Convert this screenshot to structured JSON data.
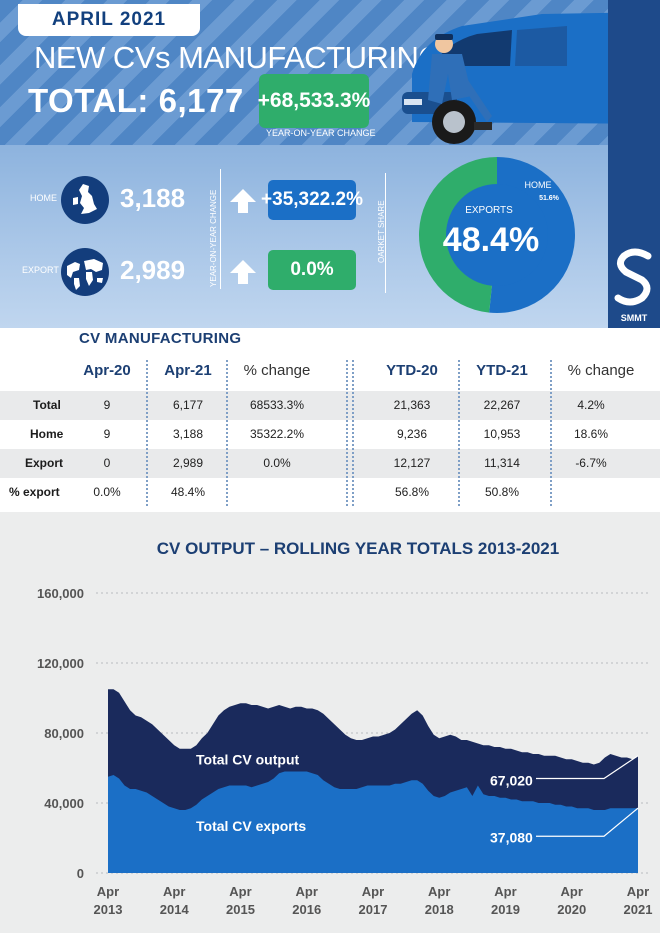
{
  "header": {
    "month": "APRIL 2021",
    "title": "NEW CVs MANUFACTURING",
    "total_label": "TOTAL: 6,177",
    "yoy_change": "+68,533.3%",
    "yoy_caption": "YEAR-ON-YEAR CHANGE"
  },
  "breakdown": {
    "home_label": "HOME",
    "home_value": "3,188",
    "home_change": "+35,322.2%",
    "export_label": "EXPORT",
    "export_value": "2,989",
    "export_change": "0.0%",
    "yoy_vertical_label": "YEAR-ON-YEAR CHANGE",
    "market_share_label": "OARKET SHARE",
    "donut_exports_label": "EXPORTS",
    "donut_exports_value": "48.4%",
    "donut_home_label": "HOME",
    "donut_home_value": "51.6%",
    "exports_share": 48.4,
    "home_share": 51.6,
    "colors": {
      "home": "#1b6fc6",
      "exports": "#2fad6b",
      "badge_blue": "#1b6fc6",
      "badge_green": "#2fad6b"
    }
  },
  "brand": {
    "name": "SMMT"
  },
  "table": {
    "title": "CV MANUFACTURING",
    "headers": [
      "Apr-20",
      "Apr-21",
      "% change",
      "YTD-20",
      "YTD-21",
      "% change"
    ],
    "rows": [
      {
        "label": "Total",
        "cells": [
          "9",
          "6,177",
          "68533.3%",
          "21,363",
          "22,267",
          "4.2%"
        ]
      },
      {
        "label": "Home",
        "cells": [
          "9",
          "3,188",
          "35322.2%",
          "9,236",
          "10,953",
          "18.6%"
        ]
      },
      {
        "label": "Export",
        "cells": [
          "0",
          "2,989",
          "0.0%",
          "12,127",
          "11,314",
          "-6.7%"
        ]
      },
      {
        "label": "% export",
        "cells": [
          "0.0%",
          "48.4%",
          "",
          "56.8%",
          "50.8%",
          ""
        ]
      }
    ]
  },
  "chart_data": {
    "type": "area",
    "title": "CV OUTPUT – ROLLING YEAR TOTALS 2013-2021",
    "ylim": [
      0,
      160000
    ],
    "yticks": [
      "0",
      "40,000",
      "80,000",
      "120,000",
      "160,000"
    ],
    "ytick_values": [
      0,
      40000,
      80000,
      120000,
      160000
    ],
    "x_ticks": [
      {
        "line1": "Apr",
        "line2": "2013",
        "t": 0
      },
      {
        "line1": "Apr",
        "line2": "2014",
        "t": 12
      },
      {
        "line1": "Apr",
        "line2": "2015",
        "t": 24
      },
      {
        "line1": "Apr",
        "line2": "2016",
        "t": 36
      },
      {
        "line1": "Apr",
        "line2": "2017",
        "t": 48
      },
      {
        "line1": "Apr",
        "line2": "2018",
        "t": 60
      },
      {
        "line1": "Apr",
        "line2": "2019",
        "t": 72
      },
      {
        "line1": "Apr",
        "line2": "2020",
        "t": 84
      },
      {
        "line1": "Apr",
        "line2": "2021",
        "t": 96
      }
    ],
    "x_months": [
      0,
      1,
      2,
      3,
      4,
      5,
      6,
      7,
      8,
      9,
      10,
      11,
      12,
      13,
      14,
      15,
      16,
      17,
      18,
      19,
      20,
      21,
      22,
      23,
      24,
      25,
      26,
      27,
      28,
      29,
      30,
      31,
      32,
      33,
      34,
      35,
      36,
      37,
      38,
      39,
      40,
      41,
      42,
      43,
      44,
      45,
      46,
      47,
      48,
      49,
      50,
      51,
      52,
      53,
      54,
      55,
      56,
      57,
      58,
      59,
      60,
      61,
      62,
      63,
      64,
      65,
      66,
      67,
      68,
      69,
      70,
      71,
      72,
      73,
      74,
      75,
      76,
      77,
      78,
      79,
      80,
      81,
      82,
      83,
      84,
      85,
      86,
      87,
      88,
      89,
      90,
      91,
      92,
      93,
      94,
      95,
      96
    ],
    "series": [
      {
        "name": "Total CV output",
        "color": "#1a2a5c",
        "values": [
          105000,
          105000,
          103000,
          98000,
          93000,
          90000,
          89000,
          87000,
          85000,
          82000,
          79000,
          76000,
          73000,
          71000,
          71000,
          71000,
          73000,
          77000,
          80000,
          85000,
          90000,
          93000,
          95000,
          96000,
          97000,
          97000,
          96000,
          96000,
          95000,
          94000,
          95000,
          96000,
          95000,
          94000,
          95000,
          95000,
          94000,
          94000,
          93000,
          91000,
          88000,
          85000,
          82000,
          79000,
          77000,
          76000,
          76000,
          77000,
          78000,
          78000,
          79000,
          80000,
          82000,
          85000,
          88000,
          91000,
          93000,
          90000,
          84000,
          79000,
          77000,
          78000,
          79000,
          78000,
          76000,
          76000,
          75000,
          74000,
          73000,
          73000,
          72000,
          72000,
          71000,
          71000,
          70000,
          69000,
          69000,
          68000,
          68000,
          67000,
          67000,
          67000,
          66000,
          65000,
          65000,
          64000,
          63000,
          63000,
          62000,
          63000,
          66000,
          68000,
          67000,
          66000,
          66000,
          65000,
          67020
        ]
      },
      {
        "name": "Total CV exports",
        "color": "#1b6fc6",
        "values": [
          55000,
          56000,
          54000,
          50000,
          48000,
          48000,
          47000,
          46000,
          44000,
          42000,
          40000,
          38000,
          37000,
          36000,
          36000,
          37000,
          39000,
          42000,
          44000,
          46000,
          48000,
          49000,
          50000,
          50000,
          50000,
          50000,
          49000,
          50000,
          51000,
          52000,
          54000,
          57000,
          58000,
          58000,
          58000,
          58000,
          58000,
          57000,
          56000,
          53000,
          51000,
          49000,
          48000,
          48000,
          48000,
          48000,
          49000,
          50000,
          50000,
          50000,
          50000,
          50000,
          51000,
          51000,
          52000,
          53000,
          53000,
          51000,
          47000,
          44000,
          43000,
          44000,
          46000,
          47000,
          48000,
          49000,
          44000,
          50000,
          45000,
          44000,
          44000,
          43000,
          43000,
          42000,
          42000,
          41000,
          41000,
          41000,
          40000,
          40000,
          40000,
          39000,
          39000,
          38000,
          38000,
          37000,
          37000,
          37000,
          36000,
          36000,
          36000,
          37000,
          37000,
          37000,
          37000,
          37000,
          37080
        ]
      }
    ],
    "annotations": [
      {
        "text": "Total CV output"
      },
      {
        "text": "Total CV exports"
      },
      {
        "text": "67,020"
      },
      {
        "text": "37,080"
      }
    ]
  }
}
